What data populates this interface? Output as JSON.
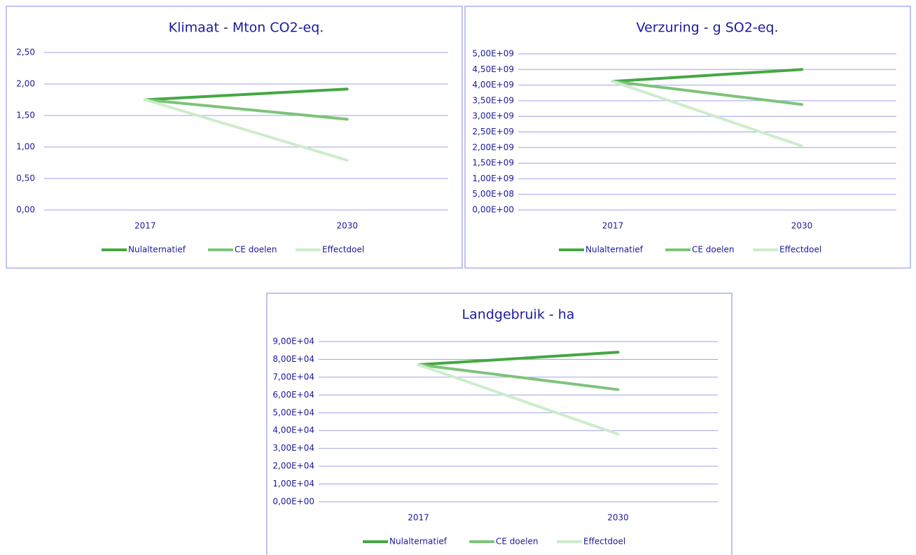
{
  "chart_data": [
    {
      "type": "line",
      "title": "Klimaat - Mton CO2-eq.",
      "categories": [
        "2017",
        "2030"
      ],
      "series": [
        {
          "name": "Nulalternatief",
          "color": "#43a843",
          "values": [
            1.75,
            1.92
          ]
        },
        {
          "name": "CE doelen",
          "color": "#7cc479",
          "values": [
            1.75,
            1.44
          ]
        },
        {
          "name": "Effectdoel",
          "color": "#cdeccb",
          "values": [
            1.75,
            0.79
          ]
        }
      ],
      "ylim": [
        0,
        2.5
      ],
      "yticks": [
        {
          "value": 0,
          "label": "0,00"
        },
        {
          "value": 0.5,
          "label": "0,50"
        },
        {
          "value": 1,
          "label": "1,00"
        },
        {
          "value": 1.5,
          "label": "1,50"
        },
        {
          "value": 2,
          "label": "2,00"
        },
        {
          "value": 2.5,
          "label": "2,50"
        }
      ],
      "grid": true,
      "legend": "bottom"
    },
    {
      "type": "line",
      "title": "Verzuring - g SO2-eq.",
      "categories": [
        "2017",
        "2030"
      ],
      "series": [
        {
          "name": "Nulalternatief",
          "color": "#43a843",
          "values": [
            4120000000,
            4500000000
          ]
        },
        {
          "name": "CE doelen",
          "color": "#7cc479",
          "values": [
            4120000000,
            3380000000
          ]
        },
        {
          "name": "Effectdoel",
          "color": "#cdeccb",
          "values": [
            4120000000,
            2050000000
          ]
        }
      ],
      "ylim": [
        0,
        5000000000
      ],
      "yticks": [
        {
          "value": 0,
          "label": "0,00E+00"
        },
        {
          "value": 500000000,
          "label": "5,00E+08"
        },
        {
          "value": 1000000000,
          "label": "1,00E+09"
        },
        {
          "value": 1500000000,
          "label": "1,50E+09"
        },
        {
          "value": 2000000000,
          "label": "2,00E+09"
        },
        {
          "value": 2500000000,
          "label": "2,50E+09"
        },
        {
          "value": 3000000000,
          "label": "3,00E+09"
        },
        {
          "value": 3500000000,
          "label": "3,50E+09"
        },
        {
          "value": 4000000000,
          "label": "4,00E+09"
        },
        {
          "value": 4500000000,
          "label": "4,50E+09"
        },
        {
          "value": 5000000000,
          "label": "5,00E+09"
        }
      ],
      "grid": true,
      "legend": "bottom"
    },
    {
      "type": "line",
      "title": "Landgebruik - ha",
      "categories": [
        "2017",
        "2030"
      ],
      "series": [
        {
          "name": "Nulalternatief",
          "color": "#43a843",
          "values": [
            77000,
            84000
          ]
        },
        {
          "name": "CE doelen",
          "color": "#7cc479",
          "values": [
            77000,
            63000
          ]
        },
        {
          "name": "Effectdoel",
          "color": "#cdeccb",
          "values": [
            77000,
            38000
          ]
        }
      ],
      "ylim": [
        0,
        90000
      ],
      "yticks": [
        {
          "value": 0,
          "label": "0,00E+00"
        },
        {
          "value": 10000,
          "label": "1,00E+04"
        },
        {
          "value": 20000,
          "label": "2,00E+04"
        },
        {
          "value": 30000,
          "label": "3,00E+04"
        },
        {
          "value": 40000,
          "label": "4,00E+04"
        },
        {
          "value": 50000,
          "label": "5,00E+04"
        },
        {
          "value": 60000,
          "label": "6,00E+04"
        },
        {
          "value": 70000,
          "label": "7,00E+04"
        },
        {
          "value": 80000,
          "label": "8,00E+04"
        },
        {
          "value": 90000,
          "label": "9,00E+04"
        }
      ],
      "grid": true,
      "legend": "bottom"
    }
  ]
}
